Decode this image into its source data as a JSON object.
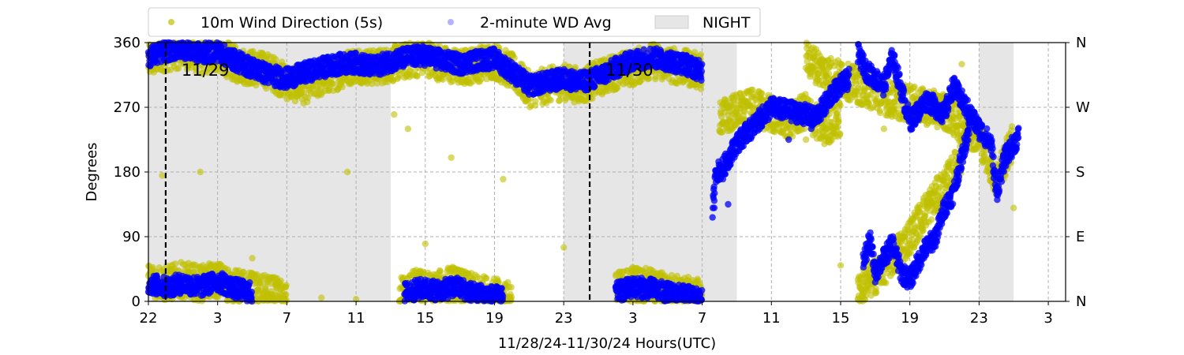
{
  "chart_data": {
    "type": "scatter",
    "xlabel": "11/28/24-11/30/24  Hours(UTC)",
    "ylabel": "Degrees",
    "x_start_hour": 22,
    "x_range_hours": [
      0,
      53
    ],
    "x_ticks_hours": [
      0,
      4,
      8,
      12,
      16,
      20,
      24,
      28,
      32,
      36,
      40,
      44,
      48,
      52
    ],
    "x_tick_labels": [
      "22",
      "3",
      "7",
      "11",
      "15",
      "19",
      "23",
      "3",
      "7",
      "11",
      "15",
      "19",
      "23",
      "3"
    ],
    "ylim": [
      0,
      360
    ],
    "y_ticks": [
      0,
      90,
      180,
      270,
      360
    ],
    "y_tick_labels": [
      "0",
      "90",
      "180",
      "270",
      "360"
    ],
    "y2_tick_labels": [
      "N",
      "E",
      "S",
      "W",
      "N"
    ],
    "grid": true,
    "legend": {
      "placement": "top-left-outside",
      "entries": [
        {
          "name": "10m Wind Direction (5s)",
          "color": "#bfbf00",
          "style": "dot"
        },
        {
          "name": "2-minute WD Avg",
          "color": "#0000ff",
          "style": "dot-faded"
        },
        {
          "name": "NIGHT",
          "color": "#e6e6e6",
          "style": "patch"
        }
      ]
    },
    "night_spans_hours": [
      [
        0,
        14
      ],
      [
        24,
        34
      ],
      [
        48,
        50
      ]
    ],
    "day_markers": [
      {
        "hour": 1,
        "label": "11/29"
      },
      {
        "hour": 25.5,
        "label": "11/30"
      }
    ],
    "series": [
      {
        "name": "10m Wind Direction (5s)",
        "color": "#bfbf00",
        "spread": 25,
        "segments": [
          [
            [
              0,
              335
            ],
            [
              1,
              345
            ],
            [
              2,
              350
            ],
            [
              3,
              340
            ],
            [
              4,
              345
            ],
            [
              5,
              330
            ],
            [
              6,
              325
            ],
            [
              7,
              320
            ],
            [
              8,
              305
            ],
            [
              9,
              300
            ],
            [
              10,
              310
            ],
            [
              11,
              320
            ],
            [
              12,
              330
            ],
            [
              13,
              325
            ],
            [
              14,
              330
            ],
            [
              15,
              335
            ],
            [
              16,
              340
            ],
            [
              17,
              330
            ],
            [
              18,
              325
            ],
            [
              19,
              330
            ],
            [
              20,
              335
            ],
            [
              21,
              320
            ],
            [
              22,
              295
            ],
            [
              23,
              300
            ],
            [
              24,
              305
            ],
            [
              25,
              300
            ],
            [
              26,
              310
            ],
            [
              27,
              320
            ],
            [
              28,
              325
            ],
            [
              29,
              335
            ],
            [
              30,
              330
            ],
            [
              31,
              325
            ],
            [
              32,
              320
            ]
          ],
          [
            [
              0,
              30
            ],
            [
              1,
              25
            ],
            [
              2,
              30
            ],
            [
              3,
              25
            ],
            [
              4,
              30
            ],
            [
              5,
              20
            ],
            [
              6,
              15
            ],
            [
              7,
              10
            ],
            [
              8,
              5
            ]
          ],
          [
            [
              14.5,
              10
            ],
            [
              15.5,
              20
            ],
            [
              16.5,
              15
            ],
            [
              17.5,
              25
            ],
            [
              18.5,
              15
            ],
            [
              19.5,
              10
            ],
            [
              20.5,
              5
            ],
            [
              21,
              5
            ]
          ],
          [
            [
              27,
              15
            ],
            [
              28,
              25
            ],
            [
              29,
              20
            ],
            [
              30,
              15
            ],
            [
              31,
              10
            ],
            [
              32,
              5
            ]
          ],
          [
            [
              33,
              255
            ],
            [
              34,
              265
            ],
            [
              35,
              270
            ],
            [
              36,
              260
            ],
            [
              37,
              250
            ],
            [
              38,
              265
            ],
            [
              39,
              240
            ],
            [
              40,
              255
            ]
          ],
          [
            [
              38,
              340
            ],
            [
              39,
              320
            ],
            [
              40,
              310
            ],
            [
              41,
              300
            ],
            [
              42,
              290
            ],
            [
              43,
              280
            ],
            [
              44,
              275
            ],
            [
              45,
              270
            ],
            [
              46,
              265
            ],
            [
              47,
              245
            ],
            [
              48,
              230
            ],
            [
              49,
              170
            ],
            [
              50,
              225
            ]
          ],
          [
            [
              41,
              15
            ],
            [
              42,
              35
            ],
            [
              43,
              60
            ],
            [
              44,
              90
            ],
            [
              45,
              130
            ],
            [
              46,
              160
            ],
            [
              47,
              200
            ]
          ]
        ],
        "scatter": [
          [
            19.2,
            315
          ],
          [
            16,
            80
          ],
          [
            24,
            75
          ],
          [
            14.2,
            260
          ],
          [
            15,
            240
          ],
          [
            17.5,
            200
          ],
          [
            20.5,
            170
          ],
          [
            11.5,
            180
          ],
          [
            3,
            180
          ],
          [
            0.8,
            175
          ],
          [
            6,
            60
          ],
          [
            10,
            5
          ],
          [
            12,
            3
          ],
          [
            40,
            50
          ],
          [
            41,
            30
          ],
          [
            42.5,
            240
          ],
          [
            44,
            300
          ],
          [
            47,
            330
          ],
          [
            38,
            225
          ],
          [
            50,
            130
          ]
        ]
      },
      {
        "name": "2-minute WD Avg",
        "color": "#0000ff",
        "spread": 14,
        "segments": [
          [
            [
              0,
              340
            ],
            [
              1,
              348
            ],
            [
              2,
              352
            ],
            [
              3,
              345
            ],
            [
              4,
              348
            ],
            [
              5,
              335
            ],
            [
              6,
              325
            ],
            [
              7,
              315
            ],
            [
              8,
              310
            ],
            [
              9,
              318
            ],
            [
              10,
              325
            ],
            [
              11,
              330
            ],
            [
              12,
              332
            ],
            [
              13,
              326
            ],
            [
              14,
              334
            ],
            [
              15,
              340
            ],
            [
              16,
              342
            ],
            [
              17,
              335
            ],
            [
              18,
              330
            ],
            [
              19,
              335
            ],
            [
              20,
              338
            ],
            [
              21,
              320
            ],
            [
              22,
              300
            ],
            [
              23,
              305
            ],
            [
              24,
              310
            ],
            [
              25,
              305
            ],
            [
              26,
              312
            ],
            [
              27,
              325
            ],
            [
              28,
              335
            ],
            [
              29,
              340
            ],
            [
              30,
              335
            ],
            [
              31,
              330
            ],
            [
              32,
              320
            ]
          ],
          [
            [
              0,
              25
            ],
            [
              1,
              20
            ],
            [
              2,
              25
            ],
            [
              3,
              20
            ],
            [
              4,
              28
            ],
            [
              5,
              18
            ],
            [
              6,
              12
            ]
          ],
          [
            [
              14.8,
              12
            ],
            [
              15.8,
              18
            ],
            [
              16.8,
              15
            ],
            [
              17.8,
              20
            ],
            [
              18.8,
              12
            ],
            [
              19.8,
              8
            ],
            [
              20.5,
              5
            ]
          ],
          [
            [
              27,
              12
            ],
            [
              28,
              20
            ],
            [
              29,
              18
            ],
            [
              30,
              12
            ],
            [
              31,
              8
            ],
            [
              32,
              5
            ]
          ],
          [
            [
              32.6,
              125
            ],
            [
              32.8,
              180
            ],
            [
              33.2,
              185
            ],
            [
              34,
              220
            ],
            [
              35,
              245
            ],
            [
              36,
              270
            ],
            [
              37,
              265
            ],
            [
              38,
              260
            ],
            [
              38.5,
              255
            ],
            [
              39,
              270
            ],
            [
              39.5,
              290
            ],
            [
              40.5,
              310
            ]
          ],
          [
            [
              41,
              345
            ],
            [
              41.5,
              320
            ],
            [
              42,
              310
            ],
            [
              42.5,
              300
            ],
            [
              43,
              340
            ],
            [
              44,
              250
            ],
            [
              45,
              280
            ],
            [
              46,
              260
            ],
            [
              46.5,
              300
            ],
            [
              47,
              280
            ],
            [
              48,
              240
            ],
            [
              48.7,
              220
            ],
            [
              49,
              150
            ],
            [
              49.5,
              200
            ],
            [
              50.3,
              230
            ]
          ],
          [
            [
              41.3,
              55
            ],
            [
              41.7,
              85
            ],
            [
              42,
              40
            ],
            [
              43,
              80
            ],
            [
              43.5,
              40
            ],
            [
              44,
              30
            ],
            [
              44.8,
              70
            ],
            [
              45.5,
              90
            ],
            [
              46,
              130
            ],
            [
              46.5,
              150
            ],
            [
              47,
              200
            ],
            [
              47.5,
              250
            ]
          ]
        ],
        "scatter": [
          [
            32.7,
            130
          ],
          [
            33.2,
            170
          ],
          [
            33.5,
            135
          ],
          [
            33.8,
            220
          ],
          [
            34.3,
            215
          ],
          [
            35,
            235
          ],
          [
            37,
            225
          ],
          [
            38.3,
            240
          ],
          [
            38.9,
            260
          ]
        ]
      }
    ]
  }
}
